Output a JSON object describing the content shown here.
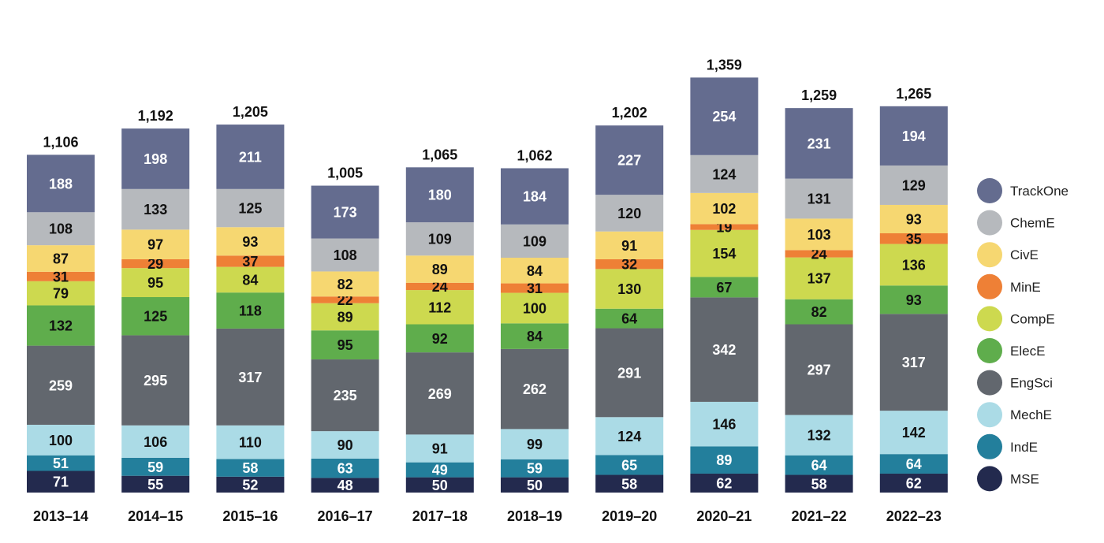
{
  "chart_data": {
    "type": "bar",
    "stacked": true,
    "title": "",
    "xlabel": "",
    "ylabel": "",
    "ylim": [
      0,
      1400
    ],
    "grid": false,
    "legend_position": "right",
    "categories": [
      "2013–14",
      "2014–15",
      "2015–16",
      "2016–17",
      "2017–18",
      "2018–19",
      "2019–20",
      "2020–21",
      "2021–22",
      "2022–23"
    ],
    "totals": [
      "1,106",
      "1,192",
      "1,205",
      "1,005",
      "1,065",
      "1,062",
      "1,202",
      "1,359",
      "1,259",
      "1,265"
    ],
    "series": [
      {
        "name": "MSE",
        "color": "#232a4e",
        "text_color": "#ffffff",
        "values": [
          71,
          55,
          52,
          48,
          50,
          50,
          58,
          62,
          58,
          62
        ]
      },
      {
        "name": "IndE",
        "color": "#237f9c",
        "text_color": "#ffffff",
        "values": [
          51,
          59,
          58,
          63,
          49,
          59,
          65,
          89,
          64,
          64
        ]
      },
      {
        "name": "MechE",
        "color": "#abdbe6",
        "text_color": "#111111",
        "values": [
          100,
          106,
          110,
          90,
          91,
          99,
          124,
          146,
          132,
          142
        ]
      },
      {
        "name": "EngSci",
        "color": "#62676e",
        "text_color": "#ffffff",
        "values": [
          259,
          295,
          317,
          235,
          269,
          262,
          291,
          342,
          297,
          317
        ]
      },
      {
        "name": "ElecE",
        "color": "#5fad4c",
        "text_color": "#111111",
        "values": [
          132,
          125,
          118,
          95,
          92,
          84,
          64,
          67,
          82,
          93
        ]
      },
      {
        "name": "CompE",
        "color": "#cdd94f",
        "text_color": "#111111",
        "values": [
          79,
          95,
          84,
          89,
          112,
          100,
          130,
          154,
          137,
          136
        ]
      },
      {
        "name": "MinE",
        "color": "#ee8036",
        "text_color": "#111111",
        "values": [
          31,
          29,
          37,
          22,
          24,
          31,
          32,
          19,
          24,
          35
        ]
      },
      {
        "name": "CivE",
        "color": "#f6d771",
        "text_color": "#111111",
        "values": [
          87,
          97,
          93,
          82,
          89,
          84,
          91,
          102,
          103,
          93
        ]
      },
      {
        "name": "ChemE",
        "color": "#b6b9bd",
        "text_color": "#111111",
        "values": [
          108,
          133,
          125,
          108,
          109,
          109,
          120,
          124,
          131,
          129
        ]
      },
      {
        "name": "TrackOne",
        "color": "#646c8f",
        "text_color": "#ffffff",
        "values": [
          188,
          198,
          211,
          173,
          180,
          184,
          227,
          254,
          231,
          194
        ]
      }
    ],
    "legend": [
      "TrackOne",
      "ChemE",
      "CivE",
      "MinE",
      "CompE",
      "ElecE",
      "EngSci",
      "MechE",
      "IndE",
      "MSE"
    ]
  }
}
